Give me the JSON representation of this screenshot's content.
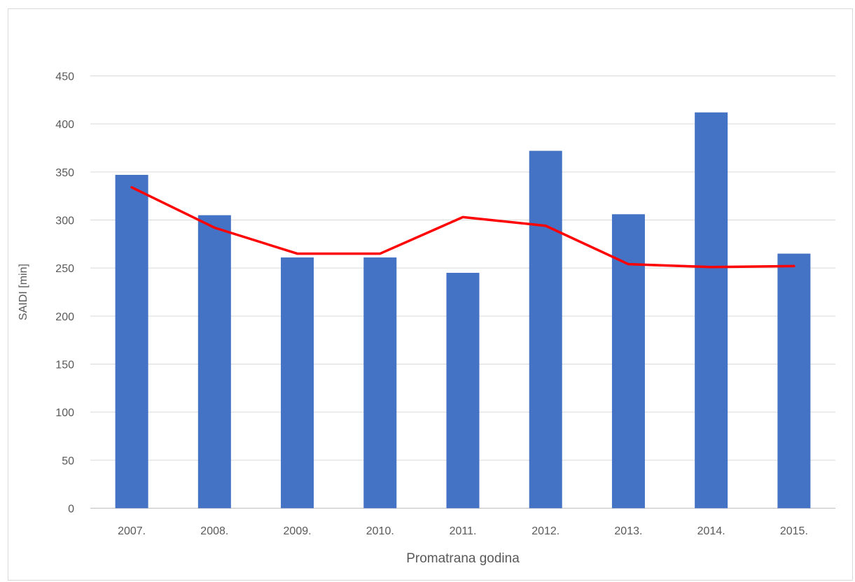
{
  "chart_data": {
    "type": "bar",
    "title": "",
    "xlabel": "Promatrana godina",
    "ylabel": "SAIDI [min]",
    "categories": [
      "2007.",
      "2008.",
      "2009.",
      "2010.",
      "2011.",
      "2012.",
      "2013.",
      "2014.",
      "2015."
    ],
    "series": [
      {
        "type": "bar",
        "color": "#4472C4",
        "values": [
          347,
          305,
          261,
          261,
          245,
          372,
          306,
          412,
          265
        ]
      },
      {
        "type": "line",
        "color": "#FF0000",
        "values": [
          334,
          292,
          265,
          265,
          303,
          294,
          254,
          251,
          252
        ]
      }
    ],
    "ylim": [
      0,
      450
    ],
    "yticks": [
      0,
      50,
      100,
      150,
      200,
      250,
      300,
      350,
      400,
      450
    ],
    "grid": true,
    "legend": "none"
  }
}
